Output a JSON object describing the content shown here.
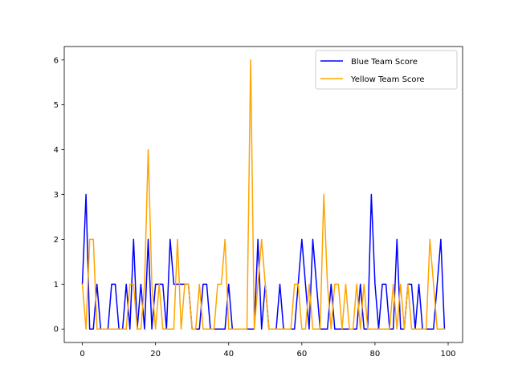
{
  "chart_data": {
    "type": "line",
    "title": "",
    "xlabel": "",
    "ylabel": "",
    "xlim": [
      -4.95,
      103.95
    ],
    "ylim": [
      -0.3,
      6.3
    ],
    "xticks": [
      0,
      20,
      40,
      60,
      80,
      100
    ],
    "yticks": [
      0,
      1,
      2,
      3,
      4,
      5,
      6
    ],
    "grid": false,
    "legend_position": "upper right",
    "x": [
      0,
      1,
      2,
      3,
      4,
      5,
      6,
      7,
      8,
      9,
      10,
      11,
      12,
      13,
      14,
      15,
      16,
      17,
      18,
      19,
      20,
      21,
      22,
      23,
      24,
      25,
      26,
      27,
      28,
      29,
      30,
      31,
      32,
      33,
      34,
      35,
      36,
      37,
      38,
      39,
      40,
      41,
      42,
      43,
      44,
      45,
      46,
      47,
      48,
      49,
      50,
      51,
      52,
      53,
      54,
      55,
      56,
      57,
      58,
      59,
      60,
      61,
      62,
      63,
      64,
      65,
      66,
      67,
      68,
      69,
      70,
      71,
      72,
      73,
      74,
      75,
      76,
      77,
      78,
      79,
      80,
      81,
      82,
      83,
      84,
      85,
      86,
      87,
      88,
      89,
      90,
      91,
      92,
      93,
      94,
      95,
      96,
      97,
      98,
      99
    ],
    "series": [
      {
        "name": "Blue Team Score",
        "color": "#0000ff",
        "values": [
          1,
          3,
          0,
          0,
          1,
          0,
          0,
          0,
          1,
          1,
          0,
          0,
          1,
          0,
          2,
          0,
          1,
          0,
          2,
          0,
          1,
          1,
          1,
          0,
          2,
          1,
          1,
          1,
          1,
          1,
          0,
          0,
          0,
          1,
          1,
          0,
          0,
          0,
          0,
          0,
          1,
          0,
          0,
          0,
          0,
          0,
          0,
          0,
          2,
          0,
          1,
          0,
          0,
          0,
          1,
          0,
          0,
          0,
          0,
          1,
          2,
          1,
          0,
          2,
          1,
          0,
          0,
          0,
          1,
          0,
          0,
          0,
          0,
          0,
          0,
          0,
          1,
          0,
          0,
          3,
          1,
          0,
          1,
          1,
          0,
          0,
          2,
          0,
          0,
          1,
          1,
          0,
          1,
          0,
          0,
          0,
          0,
          1,
          2,
          0
        ]
      },
      {
        "name": "Yellow Team Score",
        "color": "#ffa500",
        "values": [
          1,
          0,
          2,
          2,
          0,
          0,
          0,
          0,
          0,
          0,
          0,
          0,
          0,
          1,
          1,
          0,
          0,
          1,
          4,
          1,
          0,
          1,
          0,
          0,
          0,
          0,
          2,
          0,
          1,
          1,
          0,
          0,
          1,
          0,
          0,
          0,
          0,
          1,
          1,
          2,
          0,
          0,
          0,
          0,
          0,
          0,
          6,
          0,
          1,
          2,
          1,
          0,
          0,
          0,
          0,
          0,
          0,
          0,
          1,
          1,
          0,
          0,
          1,
          0,
          0,
          0,
          3,
          1,
          0,
          1,
          1,
          0,
          1,
          0,
          0,
          1,
          0,
          1,
          0,
          0,
          0,
          0,
          0,
          0,
          0,
          1,
          0,
          1,
          0,
          1,
          0,
          0,
          0,
          0,
          0,
          2,
          1,
          0,
          0,
          0
        ]
      }
    ]
  }
}
